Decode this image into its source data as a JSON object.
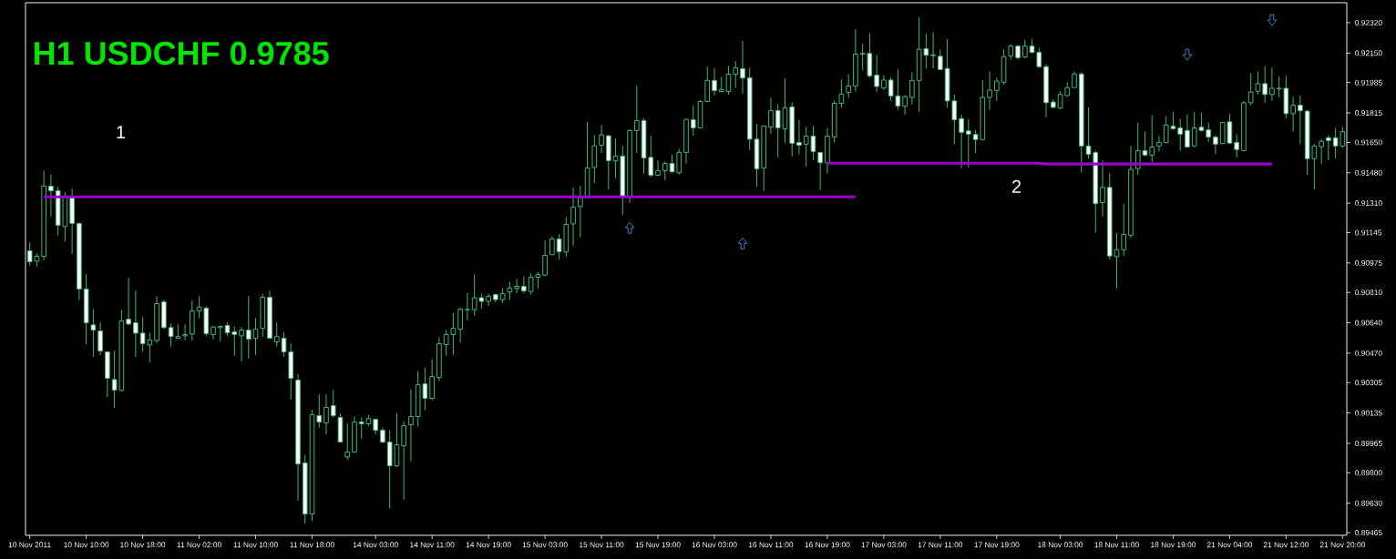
{
  "chart_data": {
    "type": "candlestick",
    "title": "H1 USDCHF 0.9785",
    "annotations": [
      "1",
      "2"
    ],
    "color": "#3cb878",
    "categories": [
      "10 Nov 2011",
      null,
      null,
      null,
      null,
      null,
      null,
      null,
      "10 Nov 10:00",
      null,
      null,
      null,
      null,
      null,
      null,
      null,
      "10 Nov 18:00",
      null,
      null,
      null,
      null,
      null,
      null,
      null,
      "11 Nov 02:00",
      null,
      null,
      null,
      null,
      null,
      null,
      null,
      "11 Nov 10:00",
      null,
      null,
      null,
      null,
      null,
      null,
      null,
      "11 Nov 18:00",
      null,
      null,
      null,
      null,
      null,
      null,
      null,
      null,
      "14 Nov 03:00",
      null,
      null,
      null,
      null,
      null,
      null,
      null,
      "14 Nov 11:00",
      null,
      null,
      null,
      null,
      null,
      null,
      null,
      "14 Nov 19:00",
      null,
      null,
      null,
      null,
      null,
      null,
      null,
      "15 Nov 03:00",
      null,
      null,
      null,
      null,
      null,
      null,
      null,
      "15 Nov 11:00",
      null,
      null,
      null,
      null,
      null,
      null,
      null,
      "15 Nov 19:00",
      null,
      null,
      null,
      null,
      null,
      null,
      null,
      "16 Nov 03:00",
      null,
      null,
      null,
      null,
      null,
      null,
      null,
      "16 Nov 11:00",
      null,
      null,
      null,
      null,
      null,
      null,
      null,
      "16 Nov 19:00",
      null,
      null,
      null,
      null,
      null,
      null,
      null,
      "17 Nov 03:00",
      null,
      null,
      null,
      null,
      null,
      null,
      null,
      "17 Nov 11:00",
      null,
      null,
      null,
      null,
      null,
      null,
      null,
      "17 Nov 19:00",
      null,
      null,
      null,
      null,
      null,
      null,
      null,
      null,
      "18 Nov 03:00",
      null,
      null,
      null,
      null,
      null,
      null,
      null,
      "18 Nov 11:00",
      null,
      null,
      null,
      null,
      null,
      null,
      null,
      "18 Nov 19:00",
      null,
      null,
      null,
      null,
      null,
      null,
      null,
      "21 Nov 04:00",
      null,
      null,
      null,
      null,
      null,
      null,
      null,
      "21 Nov 12:00",
      null,
      null,
      null,
      null,
      null,
      null,
      null,
      "21 Nov 20:00"
    ],
    "ohlc": [
      [
        0.91043,
        0.9109,
        0.9096,
        0.90982
      ],
      [
        0.90985,
        0.91028,
        0.90954,
        0.91012
      ],
      [
        0.91012,
        0.91492,
        0.9099,
        0.91405
      ],
      [
        0.91405,
        0.91471,
        0.91235,
        0.91379
      ],
      [
        0.91379,
        0.91402,
        0.91128,
        0.91186
      ],
      [
        0.91179,
        0.91371,
        0.91096,
        0.91342
      ],
      [
        0.91342,
        0.91391,
        0.91026,
        0.91196
      ],
      [
        0.91196,
        0.91203,
        0.90766,
        0.90829
      ],
      [
        0.90829,
        0.90912,
        0.90519,
        0.9064
      ],
      [
        0.90628,
        0.90718,
        0.9045,
        0.90599
      ],
      [
        0.90594,
        0.90642,
        0.90458,
        0.90482
      ],
      [
        0.90477,
        0.90477,
        0.90225,
        0.90329
      ],
      [
        0.90322,
        0.90484,
        0.90164,
        0.90263
      ],
      [
        0.90261,
        0.90713,
        0.90256,
        0.9065
      ],
      [
        0.9066,
        0.90892,
        0.90626,
        0.90633
      ],
      [
        0.9064,
        0.9082,
        0.90448,
        0.90582
      ],
      [
        0.90582,
        0.90672,
        0.90478,
        0.90523
      ],
      [
        0.90516,
        0.90586,
        0.90419,
        0.90543
      ],
      [
        0.90541,
        0.9079,
        0.90526,
        0.90747
      ],
      [
        0.90757,
        0.90769,
        0.90606,
        0.90613
      ],
      [
        0.90613,
        0.90637,
        0.90506,
        0.90563
      ],
      [
        0.90553,
        0.90631,
        0.9055,
        0.90563
      ],
      [
        0.90567,
        0.90631,
        0.90541,
        0.90574
      ],
      [
        0.90577,
        0.90764,
        0.90541,
        0.90706
      ],
      [
        0.90706,
        0.9079,
        0.90667,
        0.90728
      ],
      [
        0.90722,
        0.90733,
        0.90563,
        0.90579
      ],
      [
        0.90574,
        0.90623,
        0.90546,
        0.90616
      ],
      [
        0.90613,
        0.90625,
        0.90536,
        0.9062
      ],
      [
        0.90625,
        0.90642,
        0.90567,
        0.90584
      ],
      [
        0.90589,
        0.9062,
        0.90455,
        0.90574
      ],
      [
        0.90567,
        0.90616,
        0.90424,
        0.90599
      ],
      [
        0.90599,
        0.9079,
        0.90439,
        0.90548
      ],
      [
        0.90553,
        0.90667,
        0.9046,
        0.90604
      ],
      [
        0.90609,
        0.90803,
        0.90562,
        0.90783
      ],
      [
        0.90783,
        0.9082,
        0.90553,
        0.90553
      ],
      [
        0.90533,
        0.90642,
        0.90506,
        0.90563
      ],
      [
        0.90553,
        0.90589,
        0.9045,
        0.90477
      ],
      [
        0.90477,
        0.90524,
        0.9021,
        0.90329
      ],
      [
        0.90319,
        0.90351,
        0.89644,
        0.89849
      ],
      [
        0.89855,
        0.899,
        0.89516,
        0.89569
      ],
      [
        0.89569,
        0.90152,
        0.8953,
        0.90125
      ],
      [
        0.9012,
        0.90239,
        0.90052,
        0.90084
      ],
      [
        0.90079,
        0.90239,
        0.90016,
        0.90166
      ],
      [
        0.90176,
        0.90264,
        0.9011,
        0.9012
      ],
      [
        0.9011,
        0.90132,
        0.89972,
        0.89972
      ],
      [
        0.89889,
        0.90076,
        0.89873,
        0.89916
      ],
      [
        0.89916,
        0.90115,
        0.89916,
        0.90084
      ],
      [
        0.90084,
        0.9011,
        0.89991,
        0.90074
      ],
      [
        0.90074,
        0.90125,
        0.90062,
        0.90104
      ],
      [
        0.90099,
        0.90099,
        0.90016,
        0.90038
      ],
      [
        0.90038,
        0.90053,
        0.89965,
        0.89972
      ],
      [
        0.89972,
        0.90038,
        0.896,
        0.89839
      ],
      [
        0.89839,
        0.90135,
        0.89832,
        0.89957
      ],
      [
        0.89951,
        0.90089,
        0.89649,
        0.90064
      ],
      [
        0.90069,
        0.90268,
        0.89865,
        0.90115
      ],
      [
        0.90115,
        0.9037,
        0.90059,
        0.90293
      ],
      [
        0.90298,
        0.9039,
        0.9015,
        0.90217
      ],
      [
        0.90217,
        0.90436,
        0.90206,
        0.90339
      ],
      [
        0.90334,
        0.90558,
        0.90314,
        0.90523
      ],
      [
        0.90518,
        0.90599,
        0.90456,
        0.90574
      ],
      [
        0.90574,
        0.90693,
        0.90461,
        0.90609
      ],
      [
        0.90604,
        0.90723,
        0.90528,
        0.90716
      ],
      [
        0.90713,
        0.90807,
        0.90654,
        0.90715
      ],
      [
        0.90713,
        0.90912,
        0.9068,
        0.9078
      ],
      [
        0.9078,
        0.90803,
        0.9072,
        0.9076
      ],
      [
        0.9076,
        0.90803,
        0.90735,
        0.90788
      ],
      [
        0.90798,
        0.90803,
        0.90755,
        0.9077
      ],
      [
        0.9077,
        0.90835,
        0.9075,
        0.90803
      ],
      [
        0.90812,
        0.90871,
        0.90767,
        0.90835
      ],
      [
        0.90832,
        0.90886,
        0.90805,
        0.90844
      ],
      [
        0.90844,
        0.909,
        0.90805,
        0.90818
      ],
      [
        0.90815,
        0.90917,
        0.90798,
        0.90895
      ],
      [
        0.90895,
        0.90924,
        0.90832,
        0.9091
      ],
      [
        0.90907,
        0.91101,
        0.90903,
        0.91017
      ],
      [
        0.91021,
        0.91124,
        0.91019,
        0.91109
      ],
      [
        0.91109,
        0.91136,
        0.90995,
        0.91038
      ],
      [
        0.91036,
        0.91232,
        0.91009,
        0.91191
      ],
      [
        0.91194,
        0.91396,
        0.9107,
        0.91288
      ],
      [
        0.91291,
        0.91407,
        0.91118,
        0.91339
      ],
      [
        0.91339,
        0.91764,
        0.91339,
        0.91507
      ],
      [
        0.9151,
        0.91692,
        0.91422,
        0.91631
      ],
      [
        0.91634,
        0.91748,
        0.91592,
        0.91692
      ],
      [
        0.91687,
        0.91692,
        0.91388,
        0.91548
      ],
      [
        0.91546,
        0.91672,
        0.91449,
        0.91573
      ],
      [
        0.91573,
        0.91631,
        0.91245,
        0.91342
      ],
      [
        0.91342,
        0.91723,
        0.91311,
        0.91716
      ],
      [
        0.91716,
        0.91968,
        0.91592,
        0.91772
      ],
      [
        0.91772,
        0.91784,
        0.91475,
        0.91563
      ],
      [
        0.91566,
        0.91687,
        0.91456,
        0.91466
      ],
      [
        0.91466,
        0.91549,
        0.91461,
        0.91492
      ],
      [
        0.91492,
        0.91544,
        0.91439,
        0.91532
      ],
      [
        0.91532,
        0.9158,
        0.9148,
        0.91485
      ],
      [
        0.9148,
        0.91614,
        0.9147,
        0.91594
      ],
      [
        0.91594,
        0.91782,
        0.91531,
        0.91779
      ],
      [
        0.91777,
        0.91855,
        0.91687,
        0.91731
      ],
      [
        0.91731,
        0.91886,
        0.91728,
        0.91879
      ],
      [
        0.91879,
        0.92075,
        0.91878,
        0.91997
      ],
      [
        0.91997,
        0.92065,
        0.91913,
        0.9194
      ],
      [
        0.91935,
        0.92017,
        0.91929,
        0.91946
      ],
      [
        0.91935,
        0.92078,
        0.91918,
        0.92032
      ],
      [
        0.92032,
        0.92105,
        0.91954,
        0.92068
      ],
      [
        0.92063,
        0.92218,
        0.91923,
        0.9201
      ],
      [
        0.92012,
        0.92068,
        0.91607,
        0.91668
      ],
      [
        0.91668,
        0.91753,
        0.91403,
        0.91502
      ],
      [
        0.91507,
        0.91742,
        0.91378,
        0.91742
      ],
      [
        0.91736,
        0.919,
        0.91697,
        0.91828
      ],
      [
        0.91828,
        0.91864,
        0.91566,
        0.91731
      ],
      [
        0.91726,
        0.92007,
        0.91648,
        0.91844
      ],
      [
        0.91849,
        0.91874,
        0.91572,
        0.91645
      ],
      [
        0.9165,
        0.91777,
        0.91582,
        0.91634
      ],
      [
        0.9164,
        0.91736,
        0.91515,
        0.91685
      ],
      [
        0.91685,
        0.91742,
        0.91551,
        0.91599
      ],
      [
        0.91594,
        0.91594,
        0.91383,
        0.91536
      ],
      [
        0.91536,
        0.91731,
        0.91475,
        0.91685
      ],
      [
        0.9168,
        0.91884,
        0.91648,
        0.91869
      ],
      [
        0.91869,
        0.92002,
        0.91844,
        0.9192
      ],
      [
        0.9193,
        0.92032,
        0.919,
        0.91966
      ],
      [
        0.91966,
        0.92284,
        0.91934,
        0.92144
      ],
      [
        0.92144,
        0.92201,
        0.92054,
        0.92148
      ],
      [
        0.92148,
        0.92261,
        0.92013,
        0.92023
      ],
      [
        0.92027,
        0.9214,
        0.91932,
        0.91963
      ],
      [
        0.91955,
        0.92027,
        0.91943,
        0.91999
      ],
      [
        0.91999,
        0.92013,
        0.91882,
        0.9191
      ],
      [
        0.9191,
        0.92058,
        0.91832,
        0.91854
      ],
      [
        0.91852,
        0.91914,
        0.91805,
        0.91906
      ],
      [
        0.91902,
        0.92043,
        0.91862,
        0.91997
      ],
      [
        0.91997,
        0.9235,
        0.91821,
        0.92171
      ],
      [
        0.92175,
        0.92259,
        0.92064,
        0.92138
      ],
      [
        0.9214,
        0.92267,
        0.92064,
        0.92136
      ],
      [
        0.92132,
        0.92169,
        0.92054,
        0.92058
      ],
      [
        0.92064,
        0.92229,
        0.91846,
        0.91882
      ],
      [
        0.91882,
        0.91918,
        0.9164,
        0.91777
      ],
      [
        0.91783,
        0.91805,
        0.91505,
        0.91706
      ],
      [
        0.91714,
        0.91781,
        0.91509,
        0.91696
      ],
      [
        0.91694,
        0.9172,
        0.91589,
        0.91666
      ],
      [
        0.91666,
        0.91997,
        0.9166,
        0.91902
      ],
      [
        0.91902,
        0.92047,
        0.91832,
        0.91943
      ],
      [
        0.91941,
        0.92013,
        0.91882,
        0.91993
      ],
      [
        0.91987,
        0.92171,
        0.91973,
        0.9213
      ],
      [
        0.92134,
        0.92199,
        0.92114,
        0.92189
      ],
      [
        0.92189,
        0.92195,
        0.92114,
        0.92124
      ],
      [
        0.92128,
        0.92225,
        0.9212,
        0.92189
      ],
      [
        0.92189,
        0.92229,
        0.92148,
        0.92154
      ],
      [
        0.92154,
        0.92179,
        0.92068,
        0.92074
      ],
      [
        0.92074,
        0.92088,
        0.91791,
        0.91872
      ],
      [
        0.91876,
        0.91892,
        0.91842,
        0.91846
      ],
      [
        0.91842,
        0.91936,
        0.91836,
        0.91918
      ],
      [
        0.91912,
        0.91987,
        0.91906,
        0.91957
      ],
      [
        0.91957,
        0.92047,
        0.91953,
        0.92033
      ],
      [
        0.92033,
        0.92043,
        0.91482,
        0.9163
      ],
      [
        0.9163,
        0.91846,
        0.91559,
        0.91583
      ],
      [
        0.91593,
        0.91604,
        0.91145,
        0.91307
      ],
      [
        0.91313,
        0.91549,
        0.91236,
        0.91398
      ],
      [
        0.91398,
        0.91478,
        0.90994,
        0.91014
      ],
      [
        0.9101,
        0.91145,
        0.90833,
        0.91049
      ],
      [
        0.91049,
        0.91307,
        0.91014,
        0.91135
      ],
      [
        0.91131,
        0.9163,
        0.91115,
        0.91499
      ],
      [
        0.91503,
        0.91761,
        0.91468,
        0.91604
      ],
      [
        0.91604,
        0.9171,
        0.91573,
        0.91579
      ],
      [
        0.91579,
        0.91801,
        0.91539,
        0.91624
      ],
      [
        0.9163,
        0.91686,
        0.91599,
        0.9165
      ],
      [
        0.9165,
        0.91797,
        0.91644,
        0.91747
      ],
      [
        0.91741,
        0.91821,
        0.9172,
        0.91727
      ],
      [
        0.91731,
        0.91781,
        0.91604,
        0.91696
      ],
      [
        0.91717,
        0.91807,
        0.9162,
        0.91624
      ],
      [
        0.9163,
        0.91821,
        0.91624,
        0.91731
      ],
      [
        0.91735,
        0.91817,
        0.9171,
        0.91717
      ],
      [
        0.9172,
        0.91761,
        0.9165,
        0.9168
      ],
      [
        0.9168,
        0.9169,
        0.91585,
        0.9164
      ],
      [
        0.91644,
        0.91765,
        0.9164,
        0.91761
      ],
      [
        0.91765,
        0.91811,
        0.91642,
        0.91646
      ],
      [
        0.9165,
        0.91696,
        0.91565,
        0.9161
      ],
      [
        0.91604,
        0.91882,
        0.91604,
        0.91872
      ],
      [
        0.91872,
        0.92037,
        0.91858,
        0.91932
      ],
      [
        0.91936,
        0.92047,
        0.91918,
        0.91979
      ],
      [
        0.91979,
        0.92078,
        0.91872,
        0.91918
      ],
      [
        0.91918,
        0.92068,
        0.91882,
        0.91953
      ],
      [
        0.91949,
        0.92019,
        0.91902,
        0.91953
      ],
      [
        0.91953,
        0.92023,
        0.91785,
        0.91811
      ],
      [
        0.91811,
        0.91906,
        0.9171,
        0.91858
      ],
      [
        0.91858,
        0.91912,
        0.9164,
        0.91827
      ],
      [
        0.91825,
        0.91832,
        0.91468,
        0.91559
      ],
      [
        0.91559,
        0.9164,
        0.91387,
        0.9163
      ],
      [
        0.91626,
        0.9167,
        0.91529,
        0.91656
      ],
      [
        0.91676,
        0.9169,
        0.91549,
        0.9166
      ],
      [
        0.91676,
        0.91731,
        0.91559,
        0.9163
      ],
      [
        0.9163,
        0.91737,
        0.9162,
        0.9171
      ]
    ],
    "series": [
      {
        "type": "line",
        "color": "#9900cc",
        "values": [
          null,
          null,
          0.91345,
          0.91345,
          0.91345,
          0.91345,
          0.91345,
          0.91345,
          0.91345,
          0.91345,
          0.91345,
          0.91345,
          0.91345,
          0.91345,
          0.91345,
          0.91345,
          0.91345,
          0.91345,
          0.91345,
          0.91345,
          0.91345,
          0.91345,
          0.91345,
          0.91345,
          0.91345,
          0.91345,
          0.91345,
          0.91345,
          0.91345,
          0.91345,
          0.91345,
          0.91345,
          0.91345,
          0.91345,
          0.91345,
          0.91345,
          0.91345,
          0.91345,
          0.91345,
          0.91345,
          0.91345,
          0.91345,
          0.91345,
          0.91345,
          0.91345,
          0.91345,
          0.91345,
          0.91345,
          0.91345,
          0.91345,
          0.91345,
          0.91345,
          0.91345,
          0.91345,
          0.91345,
          0.91345,
          0.91345,
          0.91345,
          0.91345,
          0.91345,
          0.91345,
          0.91345,
          0.91345,
          0.91345,
          0.91345,
          0.91345,
          0.91345,
          0.91345,
          0.91345,
          0.91345,
          0.91345,
          0.91345,
          0.91345,
          0.91345,
          0.91345,
          0.91345,
          0.91345,
          0.91345,
          0.91345,
          0.91345,
          0.91345,
          0.91345,
          0.91345,
          0.91345,
          0.91345,
          0.91345,
          0.91345,
          0.91345,
          0.91345,
          0.91345,
          0.91345,
          0.91345,
          0.91345,
          0.91345,
          0.91345,
          0.91345,
          0.91345,
          0.91345,
          0.91345,
          0.91345,
          0.91345,
          0.91345,
          0.91345,
          0.91345,
          0.91345,
          0.91345,
          0.91345,
          0.91345,
          0.91345,
          0.91345,
          0.91345,
          0.91345,
          0.91345,
          0.91345,
          0.91345,
          0.91345,
          0.91345,
          0.91345,
          null,
          null,
          null,
          null,
          null,
          null,
          null,
          null,
          null,
          null,
          null,
          null,
          null,
          null,
          null,
          null,
          null,
          null,
          null,
          null,
          null,
          null,
          null,
          null,
          null,
          null,
          null,
          null,
          null,
          null,
          null,
          null,
          null,
          null,
          null,
          null,
          null,
          null,
          null,
          null,
          null,
          null,
          null,
          null,
          null,
          null,
          null,
          null,
          null,
          null,
          null,
          null,
          null,
          null,
          null,
          null,
          null,
          null,
          null,
          null,
          null,
          null,
          null,
          null,
          null,
          null,
          null,
          null,
          null
        ]
      },
      {
        "type": "line",
        "color": "#9900cc",
        "values": [
          null,
          null,
          null,
          null,
          null,
          null,
          null,
          null,
          null,
          null,
          null,
          null,
          null,
          null,
          null,
          null,
          null,
          null,
          null,
          null,
          null,
          null,
          null,
          null,
          null,
          null,
          null,
          null,
          null,
          null,
          null,
          null,
          null,
          null,
          null,
          null,
          null,
          null,
          null,
          null,
          null,
          null,
          null,
          null,
          null,
          null,
          null,
          null,
          null,
          null,
          null,
          null,
          null,
          null,
          null,
          null,
          null,
          null,
          null,
          null,
          null,
          null,
          null,
          null,
          null,
          null,
          null,
          null,
          null,
          null,
          null,
          null,
          null,
          null,
          null,
          null,
          null,
          null,
          null,
          null,
          null,
          null,
          null,
          null,
          null,
          null,
          null,
          null,
          null,
          null,
          null,
          null,
          null,
          null,
          null,
          null,
          null,
          null,
          null,
          null,
          null,
          null,
          null,
          null,
          null,
          null,
          null,
          null,
          null,
          null,
          null,
          null,
          null,
          0.91534,
          0.91534,
          0.91534,
          0.91534,
          0.91534,
          0.91534,
          0.91534,
          0.91534,
          0.91534,
          0.91534,
          0.91534,
          0.91534,
          0.91534,
          0.91534,
          0.91534,
          0.91534,
          0.91534,
          0.91534,
          0.91534,
          0.91534,
          0.91534,
          0.91534,
          0.91534,
          0.91534,
          0.91534,
          0.91534,
          0.91534,
          0.91534,
          0.91534,
          0.91534,
          0.91534,
          0.91529,
          0.91529,
          0.91529,
          0.91529,
          0.91529,
          0.91529,
          0.91529,
          0.91529,
          0.91529,
          0.91529,
          0.91529,
          0.91529,
          0.91529,
          0.91529,
          0.91529,
          0.91529,
          0.91529,
          0.91529,
          0.91529,
          0.91529,
          0.91529,
          0.91529,
          0.91529,
          0.91529,
          0.91529,
          0.91529,
          0.91529,
          0.91529,
          0.91529,
          0.91529,
          0.91529,
          0.91529,
          0.91529,
          null,
          null,
          null,
          null,
          null,
          null,
          null,
          null,
          null,
          null
        ]
      },
      {
        "type": "scatter",
        "color": "#4f86c6",
        "marker": "triangle",
        "values": [
          null,
          null,
          null,
          null,
          null,
          null,
          null,
          null,
          null,
          null,
          null,
          null,
          null,
          null,
          null,
          null,
          null,
          null,
          null,
          null,
          null,
          null,
          null,
          null,
          null,
          null,
          null,
          null,
          null,
          null,
          null,
          null,
          null,
          null,
          null,
          null,
          null,
          null,
          null,
          null,
          null,
          null,
          null,
          null,
          null,
          null,
          null,
          null,
          null,
          null,
          null,
          null,
          null,
          null,
          null,
          null,
          null,
          null,
          null,
          null,
          null,
          null,
          null,
          null,
          null,
          null,
          null,
          null,
          null,
          null,
          null,
          null,
          null,
          null,
          null,
          null,
          null,
          null,
          null,
          null,
          null,
          null,
          null,
          null,
          null,
          0.91172,
          null,
          null,
          null,
          null,
          null,
          null,
          null,
          null,
          null,
          null,
          null,
          null,
          null,
          null,
          null,
          0.91085,
          null,
          null,
          null,
          null,
          null,
          null,
          null,
          null,
          null,
          null,
          null,
          null,
          null,
          null,
          null,
          null,
          null,
          null,
          null,
          null,
          null,
          null,
          null,
          null,
          null,
          null,
          null,
          null,
          null,
          null,
          null,
          null,
          null,
          null,
          null,
          null,
          null,
          null,
          null,
          null,
          null,
          null,
          null,
          null,
          null,
          null,
          null,
          null,
          null,
          null,
          null,
          null,
          null,
          null,
          null,
          null,
          null,
          null,
          null,
          null,
          null,
          null,
          0.92141,
          null,
          null,
          null,
          null,
          null,
          null,
          null,
          null,
          null,
          null,
          null,
          0.92335,
          null,
          null,
          null,
          null,
          null,
          null,
          null,
          null,
          null,
          null
        ]
      }
    ],
    "ylim": [
      0.8945,
      0.92432
    ],
    "yticks": [
      {
        "value": 0.89465,
        "label": "0.89465"
      },
      {
        "value": 0.8963,
        "label": "0.89630"
      },
      {
        "value": 0.898,
        "label": "0.89800"
      },
      {
        "value": 0.89965,
        "label": "0.89965"
      },
      {
        "value": 0.90135,
        "label": "0.90135"
      },
      {
        "value": 0.90305,
        "label": "0.90305"
      },
      {
        "value": 0.9047,
        "label": "0.90470"
      },
      {
        "value": 0.9064,
        "label": "0.90640"
      },
      {
        "value": 0.9081,
        "label": "0.90810"
      },
      {
        "value": 0.90975,
        "label": "0.90975"
      },
      {
        "value": 0.91145,
        "label": "0.91145"
      },
      {
        "value": 0.9131,
        "label": "0.91310"
      },
      {
        "value": 0.9148,
        "label": "0.91480"
      },
      {
        "value": 0.9165,
        "label": "0.91650"
      },
      {
        "value": 0.91815,
        "label": "0.91815"
      },
      {
        "value": 0.91985,
        "label": "0.91985"
      },
      {
        "value": 0.9215,
        "label": "0.92150"
      },
      {
        "value": 0.9232,
        "label": "0.92320"
      }
    ]
  }
}
